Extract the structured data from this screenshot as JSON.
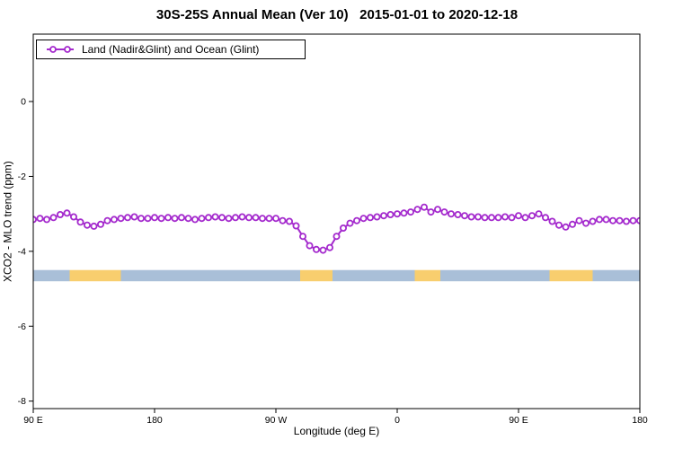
{
  "title": "30S-25S Annual Mean (Ver 10)   2015-01-01 to 2020-12-18",
  "legend": {
    "label": "Land (Nadir&Glint) and Ocean (Glint)"
  },
  "chart_data": {
    "type": "line",
    "title": "30S-25S Annual Mean (Ver 10)   2015-01-01 to 2020-12-18",
    "xlabel": "Longitude (deg E)",
    "ylabel": "XCO2 - MLO trend (ppm)",
    "x_range": [
      0,
      450
    ],
    "y_range": [
      1.8,
      -8.2
    ],
    "grid": false,
    "legend_position": "top-left",
    "x_ticks": [
      {
        "pos": 0,
        "label": "90 E"
      },
      {
        "pos": 90,
        "label": "180"
      },
      {
        "pos": 180,
        "label": "90 W"
      },
      {
        "pos": 270,
        "label": "0"
      },
      {
        "pos": 360,
        "label": "90 E"
      },
      {
        "pos": 450,
        "label": "180"
      }
    ],
    "y_ticks": [
      {
        "val": 0,
        "label": "0"
      },
      {
        "val": -2,
        "label": "-2"
      },
      {
        "val": -4,
        "label": "-4"
      },
      {
        "val": -6,
        "label": "-6"
      },
      {
        "val": -8,
        "label": "-8"
      }
    ],
    "series": [
      {
        "name": "Land (Nadir&Glint) and Ocean (Glint)",
        "color": "#A42ACD",
        "marker": "open-circle",
        "x": [
          0,
          5,
          10,
          15,
          20,
          25,
          30,
          35,
          40,
          45,
          50,
          55,
          60,
          65,
          70,
          75,
          80,
          85,
          90,
          95,
          100,
          105,
          110,
          115,
          120,
          125,
          130,
          135,
          140,
          145,
          150,
          155,
          160,
          165,
          170,
          175,
          180,
          185,
          190,
          195,
          200,
          205,
          210,
          215,
          220,
          225,
          230,
          235,
          240,
          245,
          250,
          255,
          260,
          265,
          270,
          275,
          280,
          285,
          290,
          295,
          300,
          305,
          310,
          315,
          320,
          325,
          330,
          335,
          340,
          345,
          350,
          355,
          360,
          365,
          370,
          375,
          380,
          385,
          390,
          395,
          400,
          405,
          410,
          415,
          420,
          425,
          430,
          435,
          440,
          445,
          450
        ],
        "y": [
          -3.15,
          -3.12,
          -3.15,
          -3.1,
          -3.02,
          -2.98,
          -3.08,
          -3.22,
          -3.3,
          -3.33,
          -3.28,
          -3.18,
          -3.15,
          -3.12,
          -3.1,
          -3.08,
          -3.12,
          -3.12,
          -3.1,
          -3.12,
          -3.1,
          -3.12,
          -3.1,
          -3.12,
          -3.15,
          -3.12,
          -3.1,
          -3.08,
          -3.1,
          -3.12,
          -3.1,
          -3.08,
          -3.1,
          -3.1,
          -3.12,
          -3.12,
          -3.12,
          -3.18,
          -3.2,
          -3.32,
          -3.6,
          -3.85,
          -3.95,
          -3.97,
          -3.9,
          -3.6,
          -3.38,
          -3.25,
          -3.18,
          -3.12,
          -3.1,
          -3.08,
          -3.05,
          -3.02,
          -3.0,
          -2.98,
          -2.95,
          -2.88,
          -2.82,
          -2.95,
          -2.88,
          -2.95,
          -3.0,
          -3.02,
          -3.05,
          -3.08,
          -3.08,
          -3.1,
          -3.1,
          -3.1,
          -3.08,
          -3.1,
          -3.05,
          -3.1,
          -3.05,
          -3.0,
          -3.1,
          -3.2,
          -3.3,
          -3.35,
          -3.28,
          -3.18,
          -3.25,
          -3.2,
          -3.15,
          -3.15,
          -3.18,
          -3.18,
          -3.2,
          -3.18,
          -3.18
        ]
      }
    ],
    "surface_band": {
      "y_top": -4.5,
      "y_bottom": -4.8,
      "ocean_color": "#A9BFD8",
      "land_color": "#F8CE6E",
      "segments": [
        {
          "start": 0,
          "end": 27,
          "type": "ocean"
        },
        {
          "start": 27,
          "end": 65,
          "type": "land"
        },
        {
          "start": 65,
          "end": 198,
          "type": "ocean"
        },
        {
          "start": 198,
          "end": 222,
          "type": "land"
        },
        {
          "start": 222,
          "end": 283,
          "type": "ocean"
        },
        {
          "start": 283,
          "end": 302,
          "type": "land"
        },
        {
          "start": 302,
          "end": 383,
          "type": "ocean"
        },
        {
          "start": 383,
          "end": 415,
          "type": "land"
        },
        {
          "start": 415,
          "end": 450,
          "type": "ocean"
        }
      ]
    }
  }
}
